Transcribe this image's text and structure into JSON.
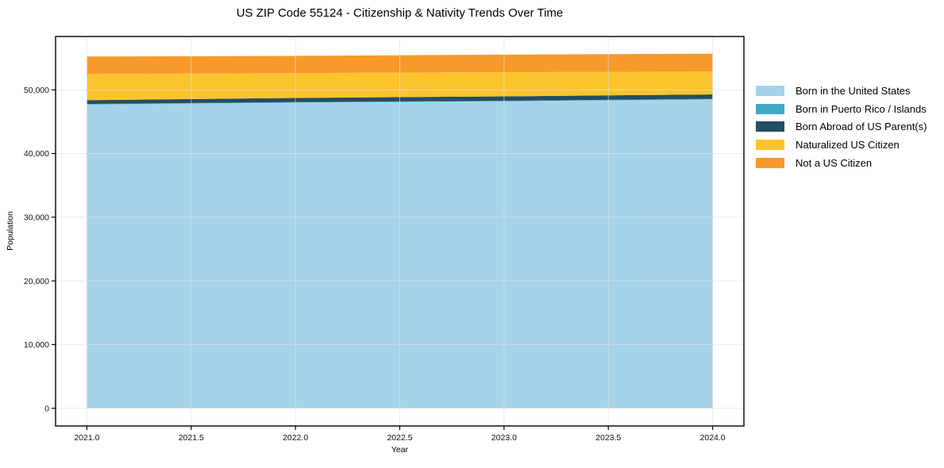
{
  "chart_data": {
    "type": "area",
    "stacked": true,
    "title": "US ZIP Code 55124 - Citizenship & Nativity Trends Over Time",
    "xlabel": "Year",
    "ylabel": "Population",
    "x": [
      2021,
      2022,
      2023,
      2024
    ],
    "series": [
      {
        "name": "Born in the United States",
        "color": "#a5d3e9",
        "values": [
          47700,
          48000,
          48200,
          48500
        ]
      },
      {
        "name": "Born in Puerto Rico / Islands",
        "color": "#41a9c4",
        "values": [
          80,
          80,
          80,
          80
        ]
      },
      {
        "name": "Born Abroad of US Parent(s)",
        "color": "#244e62",
        "values": [
          600,
          650,
          700,
          700
        ]
      },
      {
        "name": "Naturalized US Citizen",
        "color": "#fdc42f",
        "values": [
          4100,
          3900,
          3800,
          3600
        ]
      },
      {
        "name": "Not a US Citizen",
        "color": "#f8992c",
        "values": [
          2750,
          2700,
          2750,
          2800
        ]
      }
    ],
    "x_ticks": {
      "values": [
        2021.0,
        2021.5,
        2022.0,
        2022.5,
        2023.0,
        2023.5,
        2024.0
      ],
      "labels": [
        "2021.0",
        "2021.5",
        "2022.0",
        "2022.5",
        "2023.0",
        "2023.5",
        "2024.0"
      ]
    },
    "y_ticks": {
      "values": [
        0,
        10000,
        20000,
        30000,
        40000,
        50000
      ],
      "labels": [
        "0",
        "10,000",
        "20,000",
        "30,000",
        "40,000",
        "50,000"
      ]
    },
    "xlim": [
      2020.85,
      2024.15
    ],
    "ylim": [
      -2780,
      58380
    ],
    "grid": true,
    "legend_position": "right",
    "grid_color": "#e9e9e9",
    "spine_color": "#000000"
  }
}
